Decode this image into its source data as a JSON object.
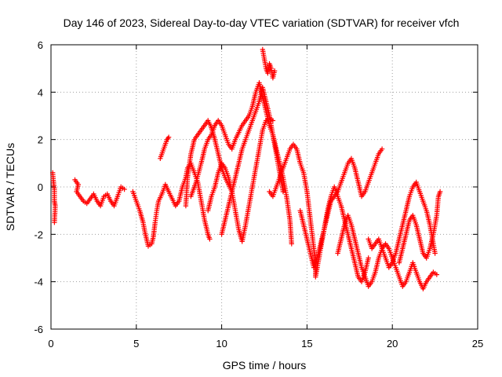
{
  "chart_data": {
    "type": "scatter",
    "title": "Day 146 of 2023, Sidereal Day-to-day VTEC variation (SDTVAR) for receiver vfch",
    "xlabel": "GPS time / hours",
    "ylabel": "SDTVAR / TECUs",
    "xlim": [
      0,
      25
    ],
    "ylim": [
      -6,
      6
    ],
    "xticks": [
      "0",
      "5",
      "10",
      "15",
      "20",
      "25"
    ],
    "yticks": [
      "-6",
      "-4",
      "-2",
      "0",
      "2",
      "4",
      "6"
    ],
    "grid": true,
    "marker": "plus",
    "color": "#ff0000",
    "series": [
      {
        "name": "s1",
        "points": [
          [
            0.1,
            0.6
          ],
          [
            0.15,
            0.2
          ],
          [
            0.2,
            -0.1
          ],
          [
            0.2,
            -0.6
          ],
          [
            0.25,
            -0.8
          ],
          [
            0.2,
            -1.5
          ]
        ]
      },
      {
        "name": "s2",
        "points": [
          [
            1.4,
            0.3
          ],
          [
            1.6,
            0.1
          ],
          [
            1.5,
            -0.2
          ],
          [
            1.7,
            -0.4
          ],
          [
            1.9,
            -0.6
          ],
          [
            2.1,
            -0.7
          ],
          [
            2.3,
            -0.5
          ],
          [
            2.5,
            -0.3
          ],
          [
            2.7,
            -0.6
          ],
          [
            2.9,
            -0.8
          ],
          [
            3.1,
            -0.4
          ],
          [
            3.3,
            -0.3
          ],
          [
            3.5,
            -0.6
          ],
          [
            3.7,
            -0.8
          ],
          [
            3.9,
            -0.4
          ],
          [
            4.1,
            0.0
          ],
          [
            4.3,
            -0.1
          ]
        ]
      },
      {
        "name": "s3",
        "points": [
          [
            4.8,
            -0.2
          ],
          [
            5.0,
            -0.6
          ],
          [
            5.2,
            -1.0
          ],
          [
            5.4,
            -1.5
          ],
          [
            5.5,
            -1.9
          ],
          [
            5.6,
            -2.2
          ],
          [
            5.7,
            -2.5
          ],
          [
            5.9,
            -2.4
          ],
          [
            6.0,
            -2.1
          ],
          [
            6.1,
            -1.5
          ],
          [
            6.2,
            -1.0
          ],
          [
            6.3,
            -0.6
          ],
          [
            6.5,
            -0.3
          ],
          [
            6.7,
            0.1
          ],
          [
            6.9,
            -0.2
          ],
          [
            7.1,
            -0.5
          ],
          [
            7.3,
            -0.8
          ],
          [
            7.5,
            -0.6
          ],
          [
            7.7,
            0.0
          ],
          [
            7.9,
            0.4
          ],
          [
            8.0,
            0.8
          ],
          [
            8.2,
            1.0
          ],
          [
            8.4,
            0.6
          ],
          [
            8.6,
            0.2
          ],
          [
            8.8,
            -0.6
          ],
          [
            9.0,
            -1.4
          ],
          [
            9.2,
            -2.0
          ],
          [
            9.3,
            -2.2
          ]
        ]
      },
      {
        "name": "s4",
        "points": [
          [
            6.4,
            1.2
          ],
          [
            6.6,
            1.6
          ],
          [
            6.8,
            2.0
          ],
          [
            6.9,
            2.1
          ]
        ]
      },
      {
        "name": "s5",
        "points": [
          [
            7.9,
            -0.8
          ],
          [
            8.0,
            0.4
          ],
          [
            8.2,
            1.4
          ],
          [
            8.4,
            2.0
          ],
          [
            8.6,
            2.2
          ],
          [
            8.8,
            2.4
          ],
          [
            9.0,
            2.6
          ],
          [
            9.2,
            2.8
          ],
          [
            9.4,
            2.5
          ],
          [
            9.6,
            2.0
          ],
          [
            9.8,
            1.4
          ],
          [
            10.0,
            0.8
          ],
          [
            10.2,
            0.4
          ],
          [
            10.4,
            0.1
          ],
          [
            10.6,
            -0.2
          ]
        ]
      },
      {
        "name": "s6",
        "points": [
          [
            8.2,
            -0.4
          ],
          [
            8.5,
            0.2
          ],
          [
            8.8,
            1.0
          ],
          [
            9.0,
            1.6
          ],
          [
            9.2,
            2.0
          ],
          [
            9.4,
            2.2
          ],
          [
            9.6,
            2.6
          ],
          [
            9.8,
            2.8
          ],
          [
            10.0,
            2.6
          ],
          [
            10.2,
            2.2
          ],
          [
            10.4,
            1.8
          ],
          [
            10.6,
            1.6
          ],
          [
            10.8,
            2.0
          ],
          [
            11.0,
            2.3
          ],
          [
            11.2,
            2.6
          ],
          [
            11.4,
            2.8
          ],
          [
            11.6,
            3.0
          ],
          [
            11.8,
            3.4
          ],
          [
            12.0,
            4.0
          ],
          [
            12.2,
            4.4
          ],
          [
            12.4,
            3.8
          ],
          [
            12.6,
            3.2
          ],
          [
            12.8,
            2.6
          ],
          [
            13.0,
            2.2
          ],
          [
            13.2,
            1.6
          ],
          [
            13.4,
            1.0
          ],
          [
            13.6,
            0.4
          ],
          [
            13.8,
            -0.4
          ],
          [
            14.0,
            -1.4
          ],
          [
            14.1,
            -2.4
          ]
        ]
      },
      {
        "name": "s7",
        "points": [
          [
            9.2,
            -1.0
          ],
          [
            9.4,
            -0.4
          ],
          [
            9.6,
            0.0
          ],
          [
            9.8,
            0.6
          ],
          [
            10.0,
            1.0
          ],
          [
            10.2,
            0.8
          ],
          [
            10.4,
            0.4
          ],
          [
            10.6,
            -0.2
          ],
          [
            10.8,
            -1.0
          ],
          [
            11.0,
            -1.8
          ],
          [
            11.2,
            -2.3
          ],
          [
            11.4,
            -1.6
          ],
          [
            11.6,
            -0.8
          ],
          [
            11.8,
            0.0
          ],
          [
            12.0,
            0.8
          ],
          [
            12.2,
            1.6
          ],
          [
            12.4,
            2.4
          ],
          [
            12.6,
            2.8
          ],
          [
            12.8,
            2.9
          ],
          [
            13.0,
            2.8
          ]
        ]
      },
      {
        "name": "s8",
        "points": [
          [
            10.0,
            -2.0
          ],
          [
            10.2,
            -1.4
          ],
          [
            10.4,
            -0.8
          ],
          [
            10.6,
            -0.2
          ],
          [
            10.8,
            0.4
          ],
          [
            11.0,
            1.0
          ],
          [
            11.2,
            1.6
          ],
          [
            11.4,
            2.0
          ],
          [
            11.6,
            2.4
          ],
          [
            11.8,
            2.8
          ],
          [
            12.0,
            3.2
          ],
          [
            12.2,
            3.6
          ],
          [
            12.4,
            4.2
          ],
          [
            12.6,
            3.6
          ],
          [
            12.8,
            3.0
          ],
          [
            13.0,
            2.2
          ],
          [
            13.2,
            1.4
          ],
          [
            13.4,
            0.6
          ],
          [
            13.6,
            -0.2
          ]
        ]
      },
      {
        "name": "s9",
        "points": [
          [
            12.4,
            5.8
          ],
          [
            12.5,
            5.4
          ],
          [
            12.6,
            5.0
          ],
          [
            12.7,
            4.8
          ],
          [
            12.8,
            5.2
          ],
          [
            12.9,
            5.0
          ],
          [
            13.0,
            4.6
          ],
          [
            13.1,
            4.9
          ]
        ]
      },
      {
        "name": "s10",
        "points": [
          [
            12.8,
            -0.2
          ],
          [
            13.0,
            -0.4
          ],
          [
            13.2,
            0.0
          ],
          [
            13.4,
            0.4
          ],
          [
            13.6,
            0.8
          ],
          [
            13.8,
            1.2
          ],
          [
            14.0,
            1.6
          ],
          [
            14.2,
            1.8
          ],
          [
            14.4,
            1.6
          ],
          [
            14.6,
            1.0
          ],
          [
            14.8,
            0.6
          ],
          [
            15.0,
            -0.2
          ],
          [
            15.2,
            -1.4
          ],
          [
            15.4,
            -2.6
          ],
          [
            15.5,
            -3.2
          ],
          [
            15.5,
            -3.8
          ],
          [
            15.6,
            -3.4
          ],
          [
            15.8,
            -2.6
          ],
          [
            16.0,
            -1.8
          ],
          [
            16.2,
            -1.0
          ],
          [
            16.4,
            -0.4
          ],
          [
            16.6,
            0.0
          ],
          [
            16.8,
            -0.4
          ],
          [
            17.0,
            -0.8
          ],
          [
            17.2,
            -1.4
          ],
          [
            17.4,
            -2.0
          ],
          [
            17.6,
            -2.6
          ],
          [
            17.8,
            -3.2
          ],
          [
            18.0,
            -3.8
          ],
          [
            18.2,
            -4.0
          ],
          [
            18.4,
            -3.6
          ],
          [
            18.6,
            -3.0
          ]
        ]
      },
      {
        "name": "s11",
        "points": [
          [
            14.6,
            -1.0
          ],
          [
            14.8,
            -1.6
          ],
          [
            15.0,
            -2.2
          ],
          [
            15.2,
            -2.8
          ],
          [
            15.4,
            -3.4
          ],
          [
            15.6,
            -3.0
          ],
          [
            15.8,
            -2.4
          ],
          [
            16.0,
            -1.8
          ],
          [
            16.2,
            -1.2
          ],
          [
            16.4,
            -0.6
          ],
          [
            16.6,
            -0.4
          ],
          [
            16.8,
            -0.2
          ],
          [
            17.0,
            0.2
          ],
          [
            17.2,
            0.6
          ],
          [
            17.4,
            1.0
          ],
          [
            17.6,
            1.2
          ],
          [
            17.8,
            0.8
          ],
          [
            18.0,
            0.2
          ],
          [
            18.2,
            -0.4
          ],
          [
            18.4,
            -0.2
          ],
          [
            18.6,
            0.2
          ],
          [
            18.8,
            0.6
          ],
          [
            19.0,
            1.0
          ],
          [
            19.2,
            1.4
          ],
          [
            19.4,
            1.6
          ]
        ]
      },
      {
        "name": "s12",
        "points": [
          [
            16.8,
            -2.8
          ],
          [
            17.0,
            -2.2
          ],
          [
            17.2,
            -1.6
          ],
          [
            17.4,
            -1.2
          ],
          [
            17.6,
            -1.6
          ],
          [
            17.8,
            -2.2
          ],
          [
            18.0,
            -2.8
          ],
          [
            18.2,
            -3.4
          ],
          [
            18.4,
            -3.8
          ],
          [
            18.6,
            -4.2
          ],
          [
            18.8,
            -4.0
          ],
          [
            19.0,
            -3.6
          ],
          [
            19.2,
            -3.0
          ],
          [
            19.4,
            -2.6
          ],
          [
            19.6,
            -2.4
          ],
          [
            19.8,
            -2.6
          ],
          [
            20.0,
            -3.0
          ],
          [
            20.2,
            -3.4
          ],
          [
            20.4,
            -3.8
          ],
          [
            20.6,
            -4.2
          ],
          [
            20.8,
            -4.0
          ],
          [
            21.0,
            -3.6
          ],
          [
            21.2,
            -3.2
          ],
          [
            21.4,
            -3.6
          ],
          [
            21.6,
            -4.0
          ],
          [
            21.8,
            -4.3
          ],
          [
            22.0,
            -4.0
          ],
          [
            22.2,
            -3.8
          ],
          [
            22.4,
            -3.6
          ],
          [
            22.6,
            -3.7
          ]
        ]
      },
      {
        "name": "s13",
        "points": [
          [
            18.6,
            -2.2
          ],
          [
            18.8,
            -2.6
          ],
          [
            19.0,
            -2.4
          ],
          [
            19.2,
            -2.2
          ],
          [
            19.4,
            -2.6
          ],
          [
            19.6,
            -3.0
          ],
          [
            19.8,
            -3.4
          ],
          [
            20.0,
            -3.2
          ],
          [
            20.2,
            -2.8
          ],
          [
            20.4,
            -2.2
          ],
          [
            20.6,
            -1.6
          ],
          [
            20.8,
            -1.0
          ],
          [
            21.0,
            -0.4
          ],
          [
            21.2,
            0.0
          ],
          [
            21.4,
            0.2
          ],
          [
            21.6,
            -0.2
          ],
          [
            21.8,
            -0.6
          ],
          [
            22.0,
            -1.0
          ],
          [
            22.2,
            -1.6
          ],
          [
            22.4,
            -2.4
          ],
          [
            22.5,
            -2.8
          ]
        ]
      },
      {
        "name": "s14",
        "points": [
          [
            20.4,
            -3.2
          ],
          [
            20.6,
            -2.6
          ],
          [
            20.8,
            -2.0
          ],
          [
            21.0,
            -1.4
          ],
          [
            21.2,
            -1.2
          ],
          [
            21.4,
            -1.6
          ],
          [
            21.6,
            -2.2
          ],
          [
            21.8,
            -2.8
          ],
          [
            22.0,
            -3.0
          ],
          [
            22.2,
            -2.6
          ],
          [
            22.4,
            -2.0
          ],
          [
            22.6,
            -1.2
          ],
          [
            22.7,
            -0.4
          ],
          [
            22.8,
            -0.2
          ]
        ]
      }
    ]
  }
}
